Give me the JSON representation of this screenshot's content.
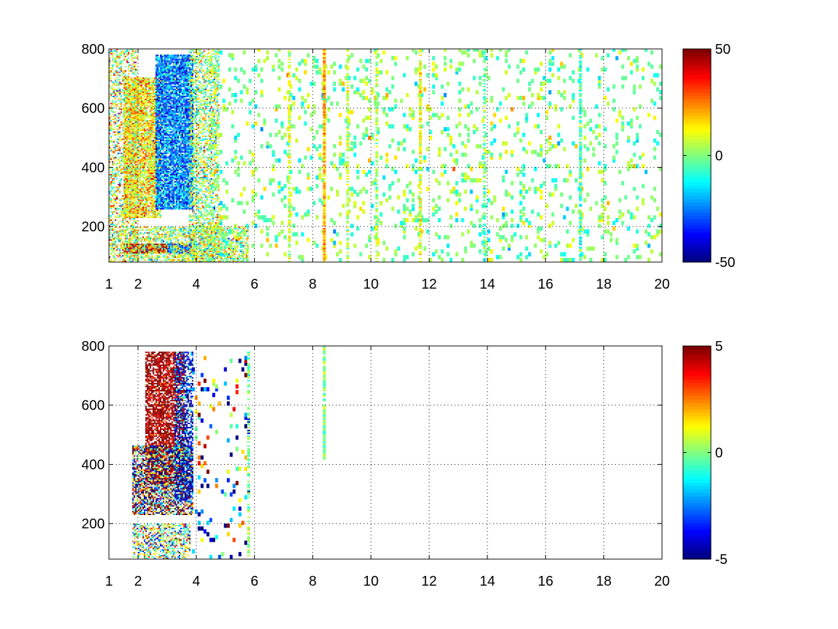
{
  "chart_data": [
    {
      "type": "heatmap",
      "panel": "top",
      "xlim": [
        1,
        20
      ],
      "ylim": [
        80,
        800
      ],
      "xticks": [
        1,
        2,
        4,
        6,
        8,
        10,
        12,
        14,
        16,
        18,
        20
      ],
      "yticks": [
        200,
        400,
        600,
        800
      ],
      "grid": true,
      "colormap": "jet",
      "clim": [
        -50,
        50
      ],
      "colorbar_ticks": [
        50,
        0,
        -50
      ],
      "colorbar_labels": [
        "50",
        "0",
        "-50"
      ],
      "regions": [
        {
          "desc": "dense band",
          "x": [
            1.0,
            2.0
          ],
          "y": [
            80,
            800
          ],
          "mean": 8,
          "spread": 18,
          "density": 0.45
        },
        {
          "desc": "warm ridge",
          "x": [
            1.5,
            2.8
          ],
          "y": [
            230,
            700
          ],
          "mean": 14,
          "spread": 12,
          "density": 0.85
        },
        {
          "desc": "cold ridge",
          "x": [
            2.6,
            3.9
          ],
          "y": [
            260,
            780
          ],
          "mean": -25,
          "spread": 12,
          "density": 0.9
        },
        {
          "desc": "warm tail",
          "x": [
            3.8,
            4.8
          ],
          "y": [
            80,
            800
          ],
          "mean": 3,
          "spread": 14,
          "density": 0.55
        },
        {
          "desc": "low hot streak",
          "x": [
            1.5,
            3.0
          ],
          "y": [
            110,
            140
          ],
          "mean": 45,
          "spread": 5,
          "density": 1.0
        },
        {
          "desc": "low cold streak",
          "x": [
            3.0,
            3.8
          ],
          "y": [
            110,
            140
          ],
          "mean": -30,
          "spread": 8,
          "density": 1.0
        },
        {
          "desc": "low band",
          "x": [
            1.5,
            5.8
          ],
          "y": [
            80,
            200
          ],
          "mean": 5,
          "spread": 15,
          "density": 0.6
        },
        {
          "desc": "sparse field",
          "x": [
            4.5,
            20.0
          ],
          "y": [
            80,
            800
          ],
          "mean": 0,
          "spread": 8,
          "density": 0.12
        }
      ],
      "vertical_lines": [
        {
          "x": 7.2,
          "mean": 8,
          "density": 0.7
        },
        {
          "x": 8.4,
          "mean": 20,
          "density": 0.95
        },
        {
          "x": 9.2,
          "mean": 6,
          "density": 0.6
        },
        {
          "x": 10.2,
          "mean": 4,
          "density": 0.6
        },
        {
          "x": 11.7,
          "mean": 10,
          "density": 0.8
        },
        {
          "x": 13.9,
          "mean": -3,
          "density": 0.55
        },
        {
          "x": 17.2,
          "mean": -6,
          "density": 0.85
        }
      ]
    },
    {
      "type": "heatmap",
      "panel": "bottom",
      "xlim": [
        1,
        20
      ],
      "ylim": [
        80,
        800
      ],
      "xticks": [
        1,
        2,
        4,
        6,
        8,
        10,
        12,
        14,
        16,
        18,
        20
      ],
      "yticks": [
        200,
        400,
        600,
        800
      ],
      "grid": true,
      "colormap": "jet",
      "clim": [
        -5,
        5
      ],
      "colorbar_ticks": [
        5,
        0,
        -5
      ],
      "colorbar_labels": [
        "5",
        "0",
        "-5"
      ],
      "regions": [
        {
          "desc": "hot plume",
          "x": [
            2.3,
            3.6
          ],
          "y": [
            330,
            780
          ],
          "mean": 5,
          "spread": 1.2,
          "density": 0.75
        },
        {
          "desc": "mixed plume",
          "x": [
            1.8,
            3.9
          ],
          "y": [
            230,
            460
          ],
          "mean": 0,
          "spread": 5,
          "density": 0.7
        },
        {
          "desc": "cold edge",
          "x": [
            3.3,
            3.9
          ],
          "y": [
            280,
            780
          ],
          "mean": -4,
          "spread": 2,
          "density": 0.55
        },
        {
          "desc": "low band",
          "x": [
            1.8,
            3.8
          ],
          "y": [
            80,
            200
          ],
          "mean": 0,
          "spread": 2.5,
          "density": 0.55
        },
        {
          "desc": "scatter",
          "x": [
            3.9,
            5.9
          ],
          "y": [
            80,
            760
          ],
          "mean": -1,
          "spread": 4,
          "density": 0.08
        }
      ],
      "vertical_lines": [
        {
          "x": 5.8,
          "mean": 0,
          "density": 0.5,
          "y": [
            80,
            780
          ]
        },
        {
          "x": 8.4,
          "mean": 0,
          "density": 0.95,
          "y": [
            420,
            800
          ]
        }
      ]
    }
  ]
}
